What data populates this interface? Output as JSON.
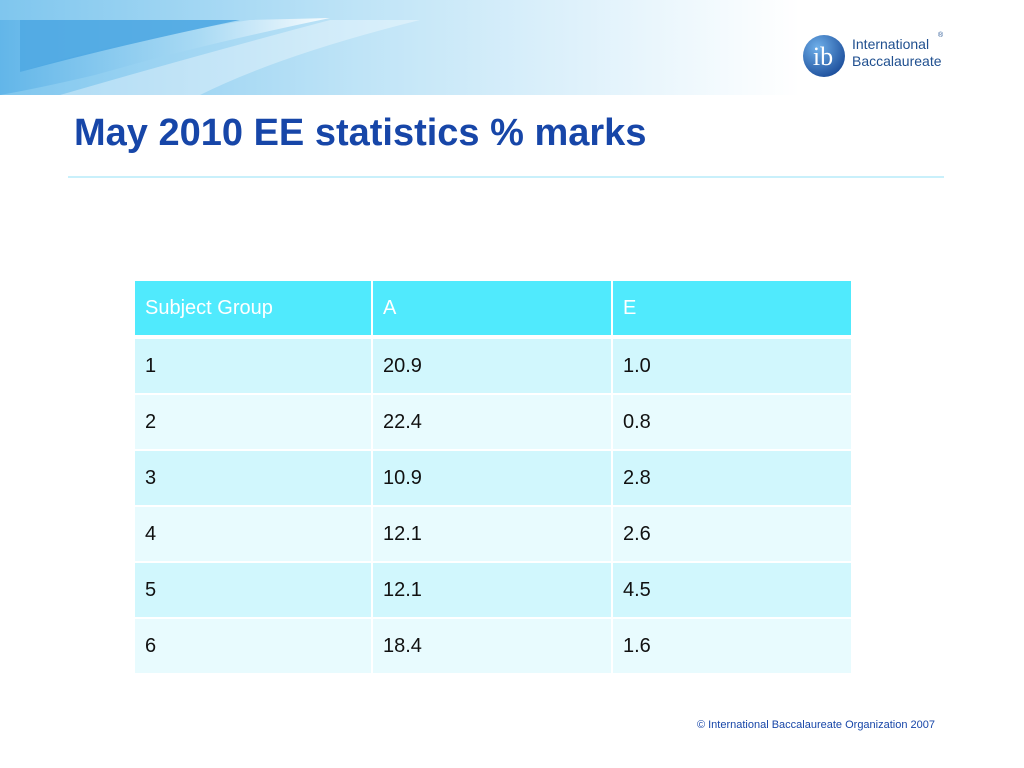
{
  "logo": {
    "mark_text": "ib",
    "line1": "International",
    "line2": "Baccalaureate",
    "reg": "®"
  },
  "title": "May 2010 EE statistics % marks",
  "table": {
    "headers": [
      "Subject  Group",
      "A",
      "E"
    ],
    "rows": [
      [
        "1",
        "20.9",
        "1.0"
      ],
      [
        "2",
        "22.4",
        "0.8"
      ],
      [
        "3",
        "10.9",
        "2.8"
      ],
      [
        "4",
        "12.1",
        "2.6"
      ],
      [
        "5",
        "12.1",
        "4.5"
      ],
      [
        "6",
        "18.4",
        "1.6"
      ]
    ]
  },
  "footer": "© International Baccalaureate Organization 2007",
  "colors": {
    "title": "#1746a8",
    "header_bg": "#50eafd",
    "row_odd": "#d1f7fd",
    "row_even": "#e8fbfe"
  }
}
